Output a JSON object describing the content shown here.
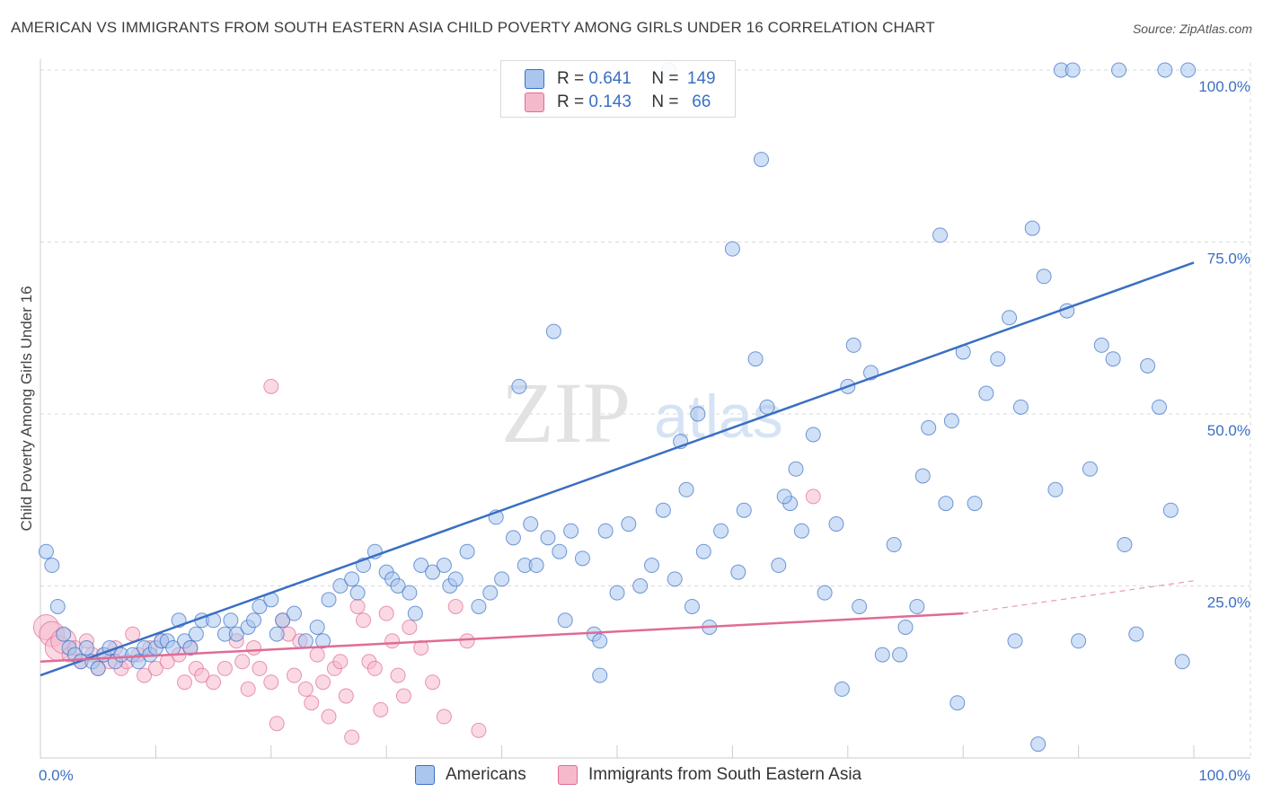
{
  "title": "AMERICAN VS IMMIGRANTS FROM SOUTH EASTERN ASIA CHILD POVERTY AMONG GIRLS UNDER 16 CORRELATION CHART",
  "source": "Source: ZipAtlas.com",
  "watermark": {
    "zip": "ZIP",
    "atlas": "atlas"
  },
  "colors": {
    "blue": "#3a6fc4",
    "blue_fill": "#aac6ee",
    "pink": "#e06b96",
    "pink_fill": "#f6b9cc",
    "grid": "#d9d9d9",
    "axis_text": "#3a6fc4"
  },
  "legend": {
    "rows": [
      {
        "r_label": "R =",
        "r_value": "0.641",
        "n_label": "N =",
        "n_value": "149"
      },
      {
        "r_label": "R =",
        "r_value": "0.143",
        "n_label": "N =",
        "n_value": "66"
      }
    ]
  },
  "bottom_legend": [
    "Americans",
    "Immigrants from South Eastern Asia"
  ],
  "chart_data": {
    "type": "scatter",
    "title": "AMERICAN VS IMMIGRANTS FROM SOUTH EASTERN ASIA CHILD POVERTY AMONG GIRLS UNDER 16 CORRELATION CHART",
    "xlabel": "",
    "ylabel": "Child Poverty Among Girls Under 16",
    "xlim": [
      0,
      100
    ],
    "ylim": [
      0,
      100
    ],
    "x_tick_labels": [
      "0.0%",
      "100.0%"
    ],
    "y_tick_labels": [
      "100.0%",
      "75.0%",
      "50.0%",
      "25.0%"
    ],
    "y_ticks": [
      100,
      75,
      50,
      25
    ],
    "grid": true,
    "legend_position": "top-center",
    "series": [
      {
        "name": "Americans",
        "color": "#3a6fc4",
        "R": 0.641,
        "N": 149,
        "trend": {
          "x": [
            0,
            100
          ],
          "y": [
            12,
            72
          ]
        },
        "points": [
          [
            0.5,
            30
          ],
          [
            1,
            28
          ],
          [
            1.5,
            22
          ],
          [
            2,
            18
          ],
          [
            2.5,
            16
          ],
          [
            3,
            15
          ],
          [
            3.5,
            14
          ],
          [
            4,
            16
          ],
          [
            4.5,
            14
          ],
          [
            5,
            13
          ],
          [
            5.5,
            15
          ],
          [
            6,
            16
          ],
          [
            6.5,
            14
          ],
          [
            7,
            15
          ],
          [
            8,
            15
          ],
          [
            8.5,
            14
          ],
          [
            9,
            16
          ],
          [
            9.5,
            15
          ],
          [
            10,
            16
          ],
          [
            10.5,
            17
          ],
          [
            11,
            17
          ],
          [
            11.5,
            16
          ],
          [
            12,
            20
          ],
          [
            12.5,
            17
          ],
          [
            13,
            16
          ],
          [
            13.5,
            18
          ],
          [
            14,
            20
          ],
          [
            15,
            20
          ],
          [
            16,
            18
          ],
          [
            16.5,
            20
          ],
          [
            17,
            18
          ],
          [
            18,
            19
          ],
          [
            18.5,
            20
          ],
          [
            19,
            22
          ],
          [
            20,
            23
          ],
          [
            20.5,
            18
          ],
          [
            21,
            20
          ],
          [
            22,
            21
          ],
          [
            23,
            17
          ],
          [
            24,
            19
          ],
          [
            24.5,
            17
          ],
          [
            25,
            23
          ],
          [
            26,
            25
          ],
          [
            27,
            26
          ],
          [
            27.5,
            24
          ],
          [
            28,
            28
          ],
          [
            29,
            30
          ],
          [
            30,
            27
          ],
          [
            30.5,
            26
          ],
          [
            31,
            25
          ],
          [
            32,
            24
          ],
          [
            32.5,
            21
          ],
          [
            33,
            28
          ],
          [
            34,
            27
          ],
          [
            35,
            28
          ],
          [
            35.5,
            25
          ],
          [
            36,
            26
          ],
          [
            37,
            30
          ],
          [
            38,
            22
          ],
          [
            39,
            24
          ],
          [
            40,
            26
          ],
          [
            41,
            32
          ],
          [
            42,
            28
          ],
          [
            42.5,
            34
          ],
          [
            43,
            28
          ],
          [
            44,
            32
          ],
          [
            45,
            30
          ],
          [
            46,
            33
          ],
          [
            47,
            29
          ],
          [
            48,
            18
          ],
          [
            48.5,
            17
          ],
          [
            49,
            33
          ],
          [
            50,
            24
          ],
          [
            51,
            34
          ],
          [
            52,
            25
          ],
          [
            53,
            28
          ],
          [
            54,
            36
          ],
          [
            55,
            26
          ],
          [
            56,
            39
          ],
          [
            56.5,
            22
          ],
          [
            57,
            50
          ],
          [
            58,
            19
          ],
          [
            59,
            33
          ],
          [
            60,
            74
          ],
          [
            61,
            36
          ],
          [
            62,
            58
          ],
          [
            63,
            51
          ],
          [
            64,
            28
          ],
          [
            65,
            37
          ],
          [
            66,
            33
          ],
          [
            67,
            47
          ],
          [
            68,
            24
          ],
          [
            69,
            34
          ],
          [
            70,
            54
          ],
          [
            71,
            22
          ],
          [
            72,
            56
          ],
          [
            73,
            15
          ],
          [
            74,
            31
          ],
          [
            75,
            19
          ],
          [
            76,
            22
          ],
          [
            77,
            48
          ],
          [
            78,
            76
          ],
          [
            79,
            49
          ],
          [
            80,
            59
          ],
          [
            81,
            37
          ],
          [
            82,
            53
          ],
          [
            83,
            58
          ],
          [
            84,
            64
          ],
          [
            85,
            51
          ],
          [
            86,
            77
          ],
          [
            87,
            70
          ],
          [
            88,
            39
          ],
          [
            89,
            65
          ],
          [
            90,
            17
          ],
          [
            91,
            42
          ],
          [
            92,
            60
          ],
          [
            93,
            58
          ],
          [
            94,
            31
          ],
          [
            95,
            18
          ],
          [
            96,
            57
          ],
          [
            97,
            51
          ],
          [
            98,
            36
          ],
          [
            99,
            14
          ],
          [
            54.5,
            100
          ],
          [
            62.5,
            87
          ],
          [
            70.5,
            60
          ],
          [
            78.5,
            37
          ],
          [
            86.5,
            2
          ],
          [
            88.5,
            100
          ],
          [
            89.5,
            100
          ],
          [
            93.5,
            100
          ],
          [
            97.5,
            100
          ],
          [
            99.5,
            100
          ],
          [
            44.5,
            62
          ],
          [
            41.5,
            54
          ],
          [
            55.5,
            46
          ],
          [
            65.5,
            42
          ],
          [
            76.5,
            41
          ],
          [
            60.5,
            27
          ],
          [
            57.5,
            30
          ],
          [
            39.5,
            35
          ],
          [
            48.5,
            12
          ],
          [
            64.5,
            38
          ],
          [
            69.5,
            10
          ],
          [
            74.5,
            15
          ],
          [
            79.5,
            8
          ],
          [
            84.5,
            17
          ],
          [
            45.5,
            20
          ]
        ]
      },
      {
        "name": "Immigrants from South Eastern Asia",
        "color": "#e06b96",
        "R": 0.143,
        "N": 66,
        "trend": {
          "x": [
            0,
            80
          ],
          "y": [
            14,
            21
          ]
        },
        "points": [
          [
            0.5,
            19
          ],
          [
            1,
            18
          ],
          [
            1.5,
            16
          ],
          [
            2,
            17
          ],
          [
            2.5,
            15
          ],
          [
            3,
            16
          ],
          [
            3.5,
            14
          ],
          [
            4,
            17
          ],
          [
            4.5,
            15
          ],
          [
            5,
            13
          ],
          [
            5.5,
            15
          ],
          [
            6,
            14
          ],
          [
            6.5,
            16
          ],
          [
            7,
            13
          ],
          [
            7.5,
            14
          ],
          [
            8,
            18
          ],
          [
            8.5,
            15
          ],
          [
            9,
            12
          ],
          [
            9.5,
            16
          ],
          [
            10,
            13
          ],
          [
            10.5,
            17
          ],
          [
            11,
            14
          ],
          [
            12,
            15
          ],
          [
            12.5,
            11
          ],
          [
            13,
            16
          ],
          [
            13.5,
            13
          ],
          [
            14,
            12
          ],
          [
            15,
            11
          ],
          [
            16,
            13
          ],
          [
            17,
            17
          ],
          [
            17.5,
            14
          ],
          [
            18,
            10
          ],
          [
            18.5,
            16
          ],
          [
            19,
            13
          ],
          [
            20,
            11
          ],
          [
            20.5,
            5
          ],
          [
            21,
            20
          ],
          [
            21.5,
            18
          ],
          [
            22,
            12
          ],
          [
            22.5,
            17
          ],
          [
            23,
            10
          ],
          [
            23.5,
            8
          ],
          [
            24,
            15
          ],
          [
            24.5,
            11
          ],
          [
            25,
            6
          ],
          [
            25.5,
            13
          ],
          [
            26,
            14
          ],
          [
            26.5,
            9
          ],
          [
            27,
            3
          ],
          [
            27.5,
            22
          ],
          [
            28,
            20
          ],
          [
            28.5,
            14
          ],
          [
            29,
            13
          ],
          [
            29.5,
            7
          ],
          [
            30,
            21
          ],
          [
            30.5,
            17
          ],
          [
            31,
            12
          ],
          [
            31.5,
            9
          ],
          [
            32,
            19
          ],
          [
            33,
            16
          ],
          [
            34,
            11
          ],
          [
            35,
            6
          ],
          [
            36,
            22
          ],
          [
            37,
            17
          ],
          [
            38,
            4
          ],
          [
            20,
            54
          ],
          [
            67,
            38
          ]
        ]
      }
    ]
  }
}
